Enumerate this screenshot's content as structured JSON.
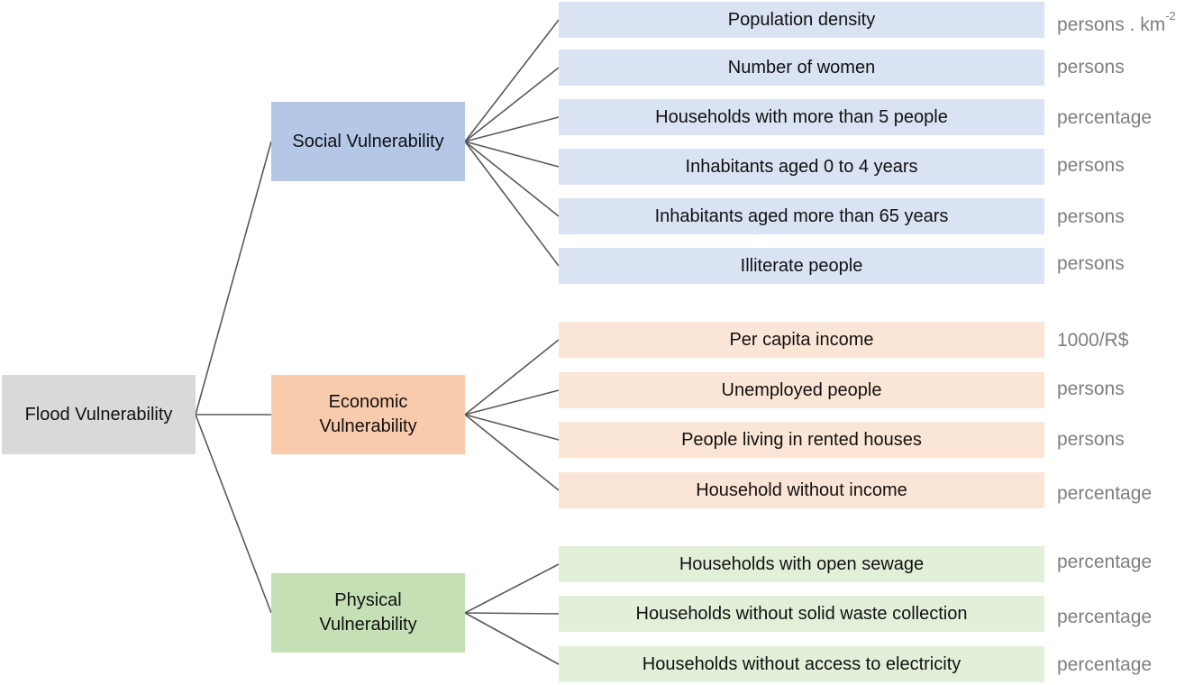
{
  "root": {
    "label": "Flood Vulnerability"
  },
  "categories": [
    {
      "label": "Social Vulnerability",
      "indicators": [
        {
          "label": "Population density",
          "unit": "persons . km",
          "unit_sup": "-2"
        },
        {
          "label": "Number of women",
          "unit": "persons"
        },
        {
          "label": "Households with more than 5 people",
          "unit": "percentage"
        },
        {
          "label": "Inhabitants aged 0 to 4 years",
          "unit": "persons"
        },
        {
          "label": "Inhabitants aged more than 65 years",
          "unit": "persons"
        },
        {
          "label": "Illiterate people",
          "unit": "persons"
        }
      ]
    },
    {
      "label": "Economic Vulnerability",
      "indicators": [
        {
          "label": "Per capita income",
          "unit": "1000/R$"
        },
        {
          "label": "Unemployed people",
          "unit": "persons"
        },
        {
          "label": "People living in rented houses",
          "unit": "persons"
        },
        {
          "label": "Household without income",
          "unit": "percentage"
        }
      ]
    },
    {
      "label": "Physical Vulnerability",
      "indicators": [
        {
          "label": "Households with open sewage",
          "unit": "percentage"
        },
        {
          "label": "Households without solid waste collection",
          "unit": "percentage"
        },
        {
          "label": "Households without access to electricity",
          "unit": "percentage"
        }
      ]
    }
  ],
  "colors": {
    "root": "#d9d9d9",
    "social_category": "#b4c7e7",
    "social_indicator": "#dae3f3",
    "economic_category": "#f8cbad",
    "economic_indicator": "#fbe5d6",
    "physical_category": "#c5e0b4",
    "physical_indicator": "#e2f0d9",
    "connector": "#595959",
    "unit_text": "#7f7f7f"
  }
}
